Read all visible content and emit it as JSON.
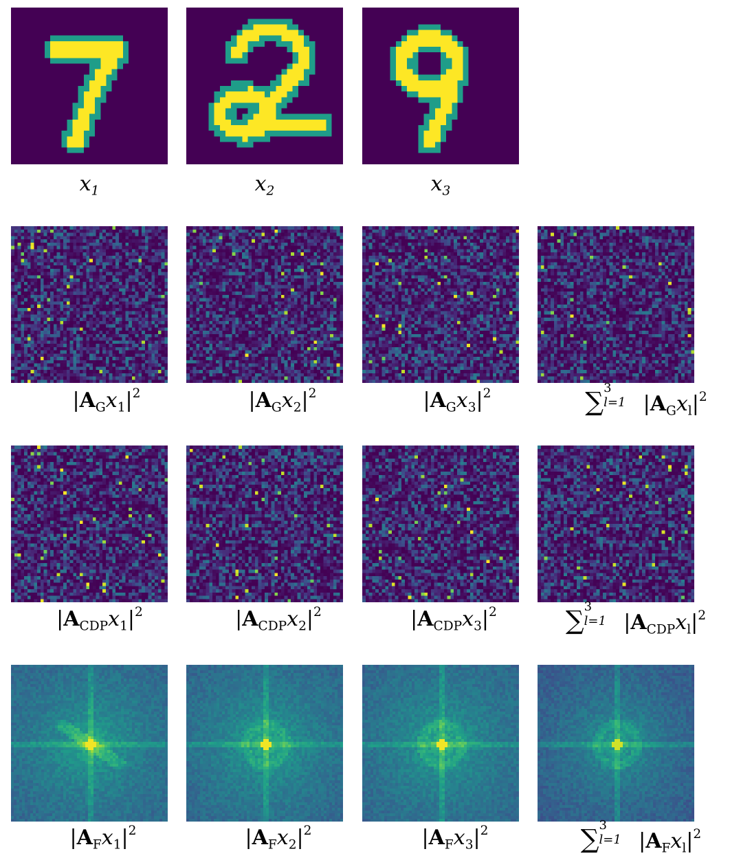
{
  "colormap": "viridis",
  "rows": [
    {
      "kind": "digit",
      "panels": [
        {
          "image": "digit-7",
          "caption": {
            "var": "x",
            "sub": "1"
          }
        },
        {
          "image": "digit-2",
          "caption": {
            "var": "x",
            "sub": "2"
          }
        },
        {
          "image": "digit-9",
          "caption": {
            "var": "x",
            "sub": "3"
          }
        }
      ]
    },
    {
      "kind": "gaussian",
      "operator": "A",
      "operator_sub": "G",
      "panels": [
        {
          "image": "noise-g-1",
          "caption": {
            "var": "x",
            "sub": "1"
          }
        },
        {
          "image": "noise-g-2",
          "caption": {
            "var": "x",
            "sub": "2"
          }
        },
        {
          "image": "noise-g-3",
          "caption": {
            "var": "x",
            "sub": "3"
          }
        },
        {
          "image": "noise-g-sum",
          "caption": {
            "sum": true,
            "upper": "3",
            "lower": "l=1",
            "var": "x",
            "sub": "l"
          }
        }
      ]
    },
    {
      "kind": "cdp",
      "operator": "A",
      "operator_sub": "CDP",
      "panels": [
        {
          "image": "noise-cdp-1",
          "caption": {
            "var": "x",
            "sub": "1"
          }
        },
        {
          "image": "noise-cdp-2",
          "caption": {
            "var": "x",
            "sub": "2"
          }
        },
        {
          "image": "noise-cdp-3",
          "caption": {
            "var": "x",
            "sub": "3"
          }
        },
        {
          "image": "noise-cdp-sum",
          "caption": {
            "sum": true,
            "upper": "3",
            "lower": "l=1",
            "var": "x",
            "sub": "l"
          }
        }
      ]
    },
    {
      "kind": "fourier",
      "operator": "A",
      "operator_sub": "F",
      "panels": [
        {
          "image": "fourier-1",
          "caption": {
            "var": "x",
            "sub": "1"
          }
        },
        {
          "image": "fourier-2",
          "caption": {
            "var": "x",
            "sub": "2"
          }
        },
        {
          "image": "fourier-3",
          "caption": {
            "var": "x",
            "sub": "3"
          }
        },
        {
          "image": "fourier-sum",
          "caption": {
            "sum": true,
            "upper": "3",
            "lower": "l=1",
            "var": "x",
            "sub": "l"
          }
        }
      ]
    }
  ],
  "power": "2",
  "bar": "|",
  "sum_symbol": "∑"
}
